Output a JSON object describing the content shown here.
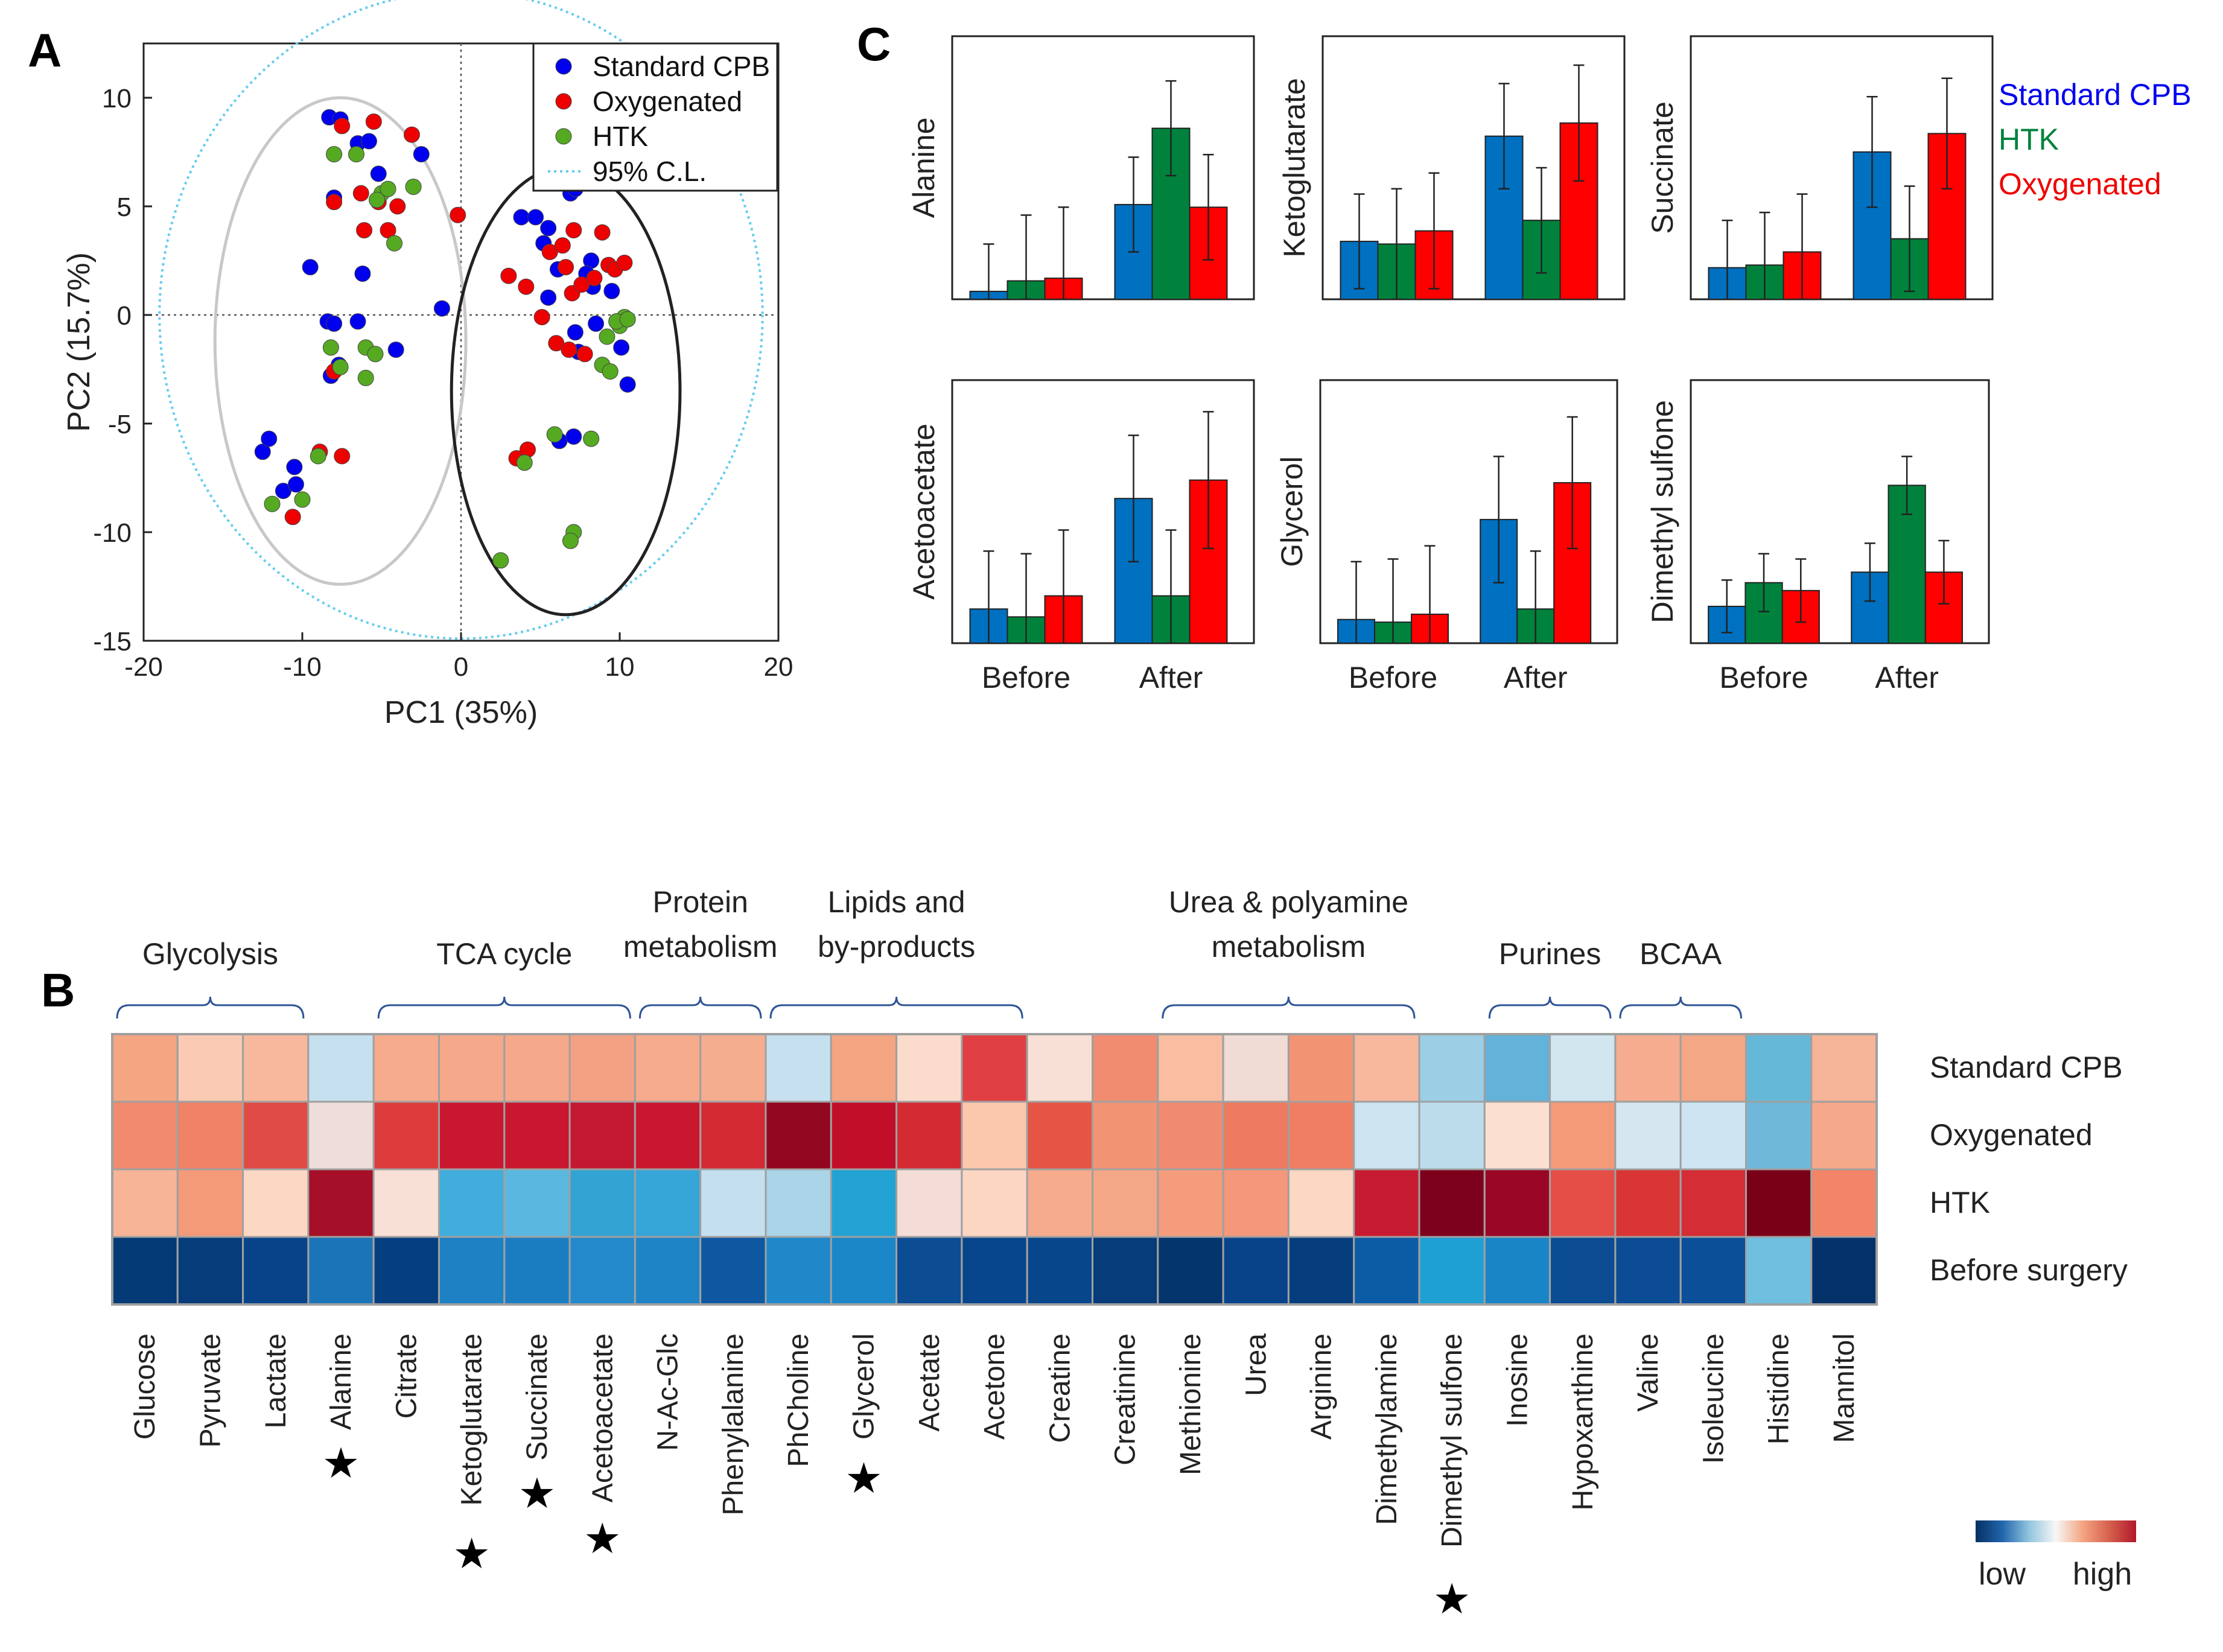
{
  "panel_letters": {
    "a": "A",
    "b": "B",
    "c": "C"
  },
  "colors": {
    "blue": "#0000ee",
    "red": "#ee0000",
    "green": "#55aa22",
    "bar_blue": "#0070c0",
    "bar_green": "#00823c",
    "bar_red": "#ff0000",
    "ci": "#66ccee",
    "ellipse_left": "#c8c8c8",
    "ellipse_right": "#222222"
  },
  "chart_data": [
    {
      "id": "A",
      "type": "scatter",
      "title": "",
      "xlabel": "PC1 (35%)",
      "ylabel": "PC2 (15.7%)",
      "xlim": [
        -20,
        20
      ],
      "ylim": [
        -15,
        12.5
      ],
      "xticks": [
        -20,
        -10,
        0,
        10,
        20
      ],
      "yticks": [
        -15,
        -10,
        -5,
        0,
        5,
        10
      ],
      "xtick_labels": [
        "-20",
        "-10",
        "0",
        "10",
        "20"
      ],
      "ytick_labels": [
        "-15",
        "-10",
        "-5",
        "0",
        "5",
        "10"
      ],
      "legend": [
        "Standard CPB",
        "Oxygenated",
        "HTK",
        "95% C.L."
      ],
      "legend_position": "top-right",
      "series": [
        {
          "name": "Standard CPB",
          "color": "#0000ee",
          "points": [
            [
              -8.3,
              9.1
            ],
            [
              -7.6,
              9.0
            ],
            [
              -6.5,
              7.9
            ],
            [
              -5.8,
              8.0
            ],
            [
              -5.2,
              6.5
            ],
            [
              -2.5,
              7.4
            ],
            [
              -8.0,
              5.4
            ],
            [
              -9.5,
              2.2
            ],
            [
              -6.2,
              1.9
            ],
            [
              -8.4,
              -0.3
            ],
            [
              -8.0,
              -0.4
            ],
            [
              -6.5,
              -0.3
            ],
            [
              -8.2,
              -2.8
            ],
            [
              -7.7,
              -2.3
            ],
            [
              -4.1,
              -1.6
            ],
            [
              -12.5,
              -6.3
            ],
            [
              -12.1,
              -5.7
            ],
            [
              -10.5,
              -7.0
            ],
            [
              -11.2,
              -8.1
            ],
            [
              -10.4,
              -7.8
            ],
            [
              -1.2,
              0.3
            ],
            [
              3.8,
              4.5
            ],
            [
              4.7,
              4.5
            ],
            [
              5.5,
              4.0
            ],
            [
              5.2,
              3.3
            ],
            [
              6.9,
              5.6
            ],
            [
              7.2,
              5.8
            ],
            [
              6.1,
              2.1
            ],
            [
              5.5,
              0.8
            ],
            [
              8.2,
              2.5
            ],
            [
              7.2,
              -0.8
            ],
            [
              8.5,
              -0.4
            ],
            [
              7.4,
              -1.7
            ],
            [
              7.9,
              1.9
            ],
            [
              8.3,
              1.3
            ],
            [
              9.5,
              1.1
            ],
            [
              10.1,
              -1.5
            ],
            [
              10.5,
              -3.2
            ],
            [
              6.2,
              -5.8
            ],
            [
              7.1,
              -5.6
            ]
          ]
        },
        {
          "name": "Oxygenated",
          "color": "#ee0000",
          "points": [
            [
              -7.5,
              8.7
            ],
            [
              -5.5,
              8.9
            ],
            [
              -3.1,
              8.3
            ],
            [
              -5.2,
              5.2
            ],
            [
              -6.1,
              3.9
            ],
            [
              -8.0,
              5.2
            ],
            [
              -6.3,
              5.6
            ],
            [
              -4.6,
              3.9
            ],
            [
              -0.2,
              4.6
            ],
            [
              -4.0,
              5.0
            ],
            [
              3.0,
              1.8
            ],
            [
              4.1,
              1.3
            ],
            [
              5.6,
              2.9
            ],
            [
              6.4,
              3.2
            ],
            [
              6.6,
              2.2
            ],
            [
              7.0,
              1.0
            ],
            [
              7.6,
              1.4
            ],
            [
              8.4,
              1.7
            ],
            [
              8.9,
              3.8
            ],
            [
              9.3,
              2.3
            ],
            [
              9.7,
              2.1
            ],
            [
              10.3,
              2.4
            ],
            [
              5.1,
              -0.1
            ],
            [
              6.0,
              -1.3
            ],
            [
              6.8,
              -1.6
            ],
            [
              7.8,
              -1.8
            ],
            [
              3.5,
              -6.6
            ],
            [
              4.2,
              -6.2
            ],
            [
              -8.9,
              -6.3
            ],
            [
              -7.5,
              -6.5
            ],
            [
              -10.6,
              -9.3
            ],
            [
              -8.0,
              -2.6
            ],
            [
              7.1,
              3.9
            ]
          ]
        },
        {
          "name": "HTK",
          "color": "#55aa22",
          "points": [
            [
              -8.0,
              7.4
            ],
            [
              -6.6,
              7.4
            ],
            [
              -5.0,
              5.6
            ],
            [
              -4.2,
              3.3
            ],
            [
              -4.6,
              5.8
            ],
            [
              -3.0,
              5.9
            ],
            [
              -5.3,
              5.3
            ],
            [
              -8.2,
              -1.5
            ],
            [
              -6.0,
              -1.5
            ],
            [
              -6.0,
              -2.9
            ],
            [
              -7.6,
              -2.4
            ],
            [
              -9.0,
              -6.5
            ],
            [
              -10.0,
              -8.5
            ],
            [
              -11.9,
              -8.7
            ],
            [
              -5.4,
              -1.8
            ],
            [
              8.9,
              -2.3
            ],
            [
              9.4,
              -2.6
            ],
            [
              9.8,
              -0.3
            ],
            [
              10.0,
              -0.5
            ],
            [
              10.3,
              -0.1
            ],
            [
              9.8,
              -0.3
            ],
            [
              10.5,
              -0.2
            ],
            [
              9.2,
              -1.0
            ],
            [
              4.0,
              -6.8
            ],
            [
              8.2,
              -5.7
            ],
            [
              7.1,
              -10.0
            ],
            [
              6.9,
              -10.4
            ],
            [
              2.5,
              -11.3
            ],
            [
              5.9,
              -5.5
            ]
          ]
        }
      ]
    },
    {
      "id": "B",
      "type": "heatmap",
      "rows": [
        "Standard CPB",
        "Oxygenated",
        "HTK",
        "Before surgery"
      ],
      "columns": [
        "Glucose",
        "Pyruvate",
        "Lactate",
        "Alanine",
        "Citrate",
        "Ketoglutarate",
        "Succinate",
        "Acetoacetate",
        "N-Ac-Glc",
        "Phenylalanine",
        "PhCholine",
        "Glycerol",
        "Acetate",
        "Acetone",
        "Creatine",
        "Creatinine",
        "Methionine",
        "Urea",
        "Arginine",
        "Dimethylamine",
        "Dimethyl sulfone",
        "Inosine",
        "Hypoxanthine",
        "Valine",
        "Isoleucine",
        "Histidine",
        "Mannitol"
      ],
      "starred": [
        "Alanine",
        "Ketoglutarate",
        "Succinate",
        "Acetoacetate",
        "Glycerol",
        "Dimethyl sulfone"
      ],
      "star_glyph": "★",
      "groups": [
        {
          "label_lines": [
            "Glycolysis"
          ],
          "from": 0,
          "to": 2
        },
        {
          "label_lines": [
            "TCA cycle"
          ],
          "from": 4,
          "to": 7
        },
        {
          "label_lines": [
            "Protein",
            "metabolism"
          ],
          "from": 8,
          "to": 9
        },
        {
          "label_lines": [
            "Lipids and",
            "by-products"
          ],
          "from": 10,
          "to": 13
        },
        {
          "label_lines": [
            "Urea & polyamine",
            "metabolism"
          ],
          "from": 16,
          "to": 19
        },
        {
          "label_lines": [
            "Purines"
          ],
          "from": 21,
          "to": 22
        },
        {
          "label_lines": [
            "BCAA"
          ],
          "from": 23,
          "to": 24
        }
      ],
      "colors": [
        [
          "#f4a582",
          "#fbcab4",
          "#f8b89d",
          "#c6e0ef",
          "#f6ab8c",
          "#f6a98a",
          "#f6a98a",
          "#f4a183",
          "#f6ab8c",
          "#f5ad8f",
          "#c6e0ef",
          "#f4a582",
          "#fbdccc",
          "#e04044",
          "#f9e0d6",
          "#f18c70",
          "#f9bda1",
          "#f0dcd4",
          "#f29474",
          "#f8b89d",
          "#9ccee6",
          "#62b2d9",
          "#d2e6f0",
          "#f6ac8e",
          "#f4a785",
          "#66b8d8",
          "#f6b498"
        ],
        [
          "#f18a6e",
          "#f08266",
          "#e04b45",
          "#eedddb",
          "#de3c3c",
          "#c8172e",
          "#c8172e",
          "#c41731",
          "#c8172e",
          "#d42a33",
          "#93061f",
          "#c10e29",
          "#d42a33",
          "#fbc7ad",
          "#e65444",
          "#f29474",
          "#f08a70",
          "#ee7a5f",
          "#ef7e62",
          "#cbe4ef",
          "#bcdcec",
          "#fbe0d2",
          "#f39a78",
          "#d6e6ef",
          "#cde5f2",
          "#6fb8d9",
          "#f6a98a"
        ],
        [
          "#f7b496",
          "#f39a79",
          "#fcd8c4",
          "#a50f27",
          "#f9e0d6",
          "#41addc",
          "#5ab8e0",
          "#33a3d4",
          "#36a5d8",
          "#c4e0ee",
          "#acd4e8",
          "#23a2d4",
          "#f3ddd6",
          "#fcd6c3",
          "#f6ab8c",
          "#f4a786",
          "#f59c7c",
          "#f4977a",
          "#fcd7c4",
          "#c71b31",
          "#7d001c",
          "#9a0626",
          "#e44e46",
          "#d93535",
          "#d42d35",
          "#7a0018",
          "#f28567"
        ],
        [
          "#043a75",
          "#053c79",
          "#08438a",
          "#1b74b8",
          "#053f80",
          "#1d81c4",
          "#1b7dc1",
          "#2389cb",
          "#1f84c6",
          "#0e58a2",
          "#1e88c9",
          "#1b86c8",
          "#0b4c93",
          "#07468d",
          "#08468c",
          "#053c79",
          "#04356d",
          "#08438a",
          "#063d7d",
          "#0c5ba5",
          "#1ea0d3",
          "#1985c6",
          "#0b4c93",
          "#0b4c94",
          "#0b4f98",
          "#6fbfe0",
          "#03326b"
        ]
      ],
      "colorbar": {
        "low_label": "low",
        "high_label": "high",
        "stops": [
          "#053061",
          "#2166ac",
          "#92c5de",
          "#f7f7f7",
          "#f4a582",
          "#d6604d",
          "#b2182b"
        ]
      }
    },
    {
      "id": "C",
      "type": "bar",
      "categories": [
        "Before",
        "After"
      ],
      "series_names": [
        "Standard CPB",
        "HTK",
        "Oxygenated"
      ],
      "legend": [
        {
          "label": "Standard CPB",
          "color": "#0000ee"
        },
        {
          "label": "HTK",
          "color": "#00823c"
        },
        {
          "label": "Oxygenated",
          "color": "#ee0000"
        }
      ],
      "ylim": [
        0,
        1
      ],
      "subplots": [
        {
          "ylabel": "Alanine",
          "means": [
            [
              0.03,
              0.07,
              0.08
            ],
            [
              0.36,
              0.65,
              0.35
            ]
          ],
          "errors": [
            [
              0.18,
              0.25,
              0.27
            ],
            [
              0.18,
              0.18,
              0.2
            ]
          ]
        },
        {
          "ylabel": "Ketoglutarate",
          "means": [
            [
              0.22,
              0.21,
              0.26
            ],
            [
              0.62,
              0.3,
              0.67
            ]
          ],
          "errors": [
            [
              0.18,
              0.21,
              0.22
            ],
            [
              0.2,
              0.2,
              0.22
            ]
          ]
        },
        {
          "ylabel": "Succinate",
          "means": [
            [
              0.12,
              0.13,
              0.18
            ],
            [
              0.56,
              0.23,
              0.63
            ]
          ],
          "errors": [
            [
              0.18,
              0.2,
              0.22
            ],
            [
              0.21,
              0.2,
              0.21
            ]
          ]
        },
        {
          "ylabel": "Acetoacetate",
          "means": [
            [
              0.13,
              0.1,
              0.18
            ],
            [
              0.55,
              0.18,
              0.62
            ]
          ],
          "errors": [
            [
              0.22,
              0.24,
              0.25
            ],
            [
              0.24,
              0.25,
              0.26
            ]
          ]
        },
        {
          "ylabel": "Glycerol",
          "means": [
            [
              0.09,
              0.08,
              0.11
            ],
            [
              0.47,
              0.13,
              0.61
            ]
          ],
          "errors": [
            [
              0.22,
              0.24,
              0.26
            ],
            [
              0.24,
              0.22,
              0.25
            ]
          ]
        },
        {
          "ylabel": "Dimethyl sulfone",
          "means": [
            [
              0.14,
              0.23,
              0.2
            ],
            [
              0.27,
              0.6,
              0.27
            ]
          ],
          "errors": [
            [
              0.1,
              0.11,
              0.12
            ],
            [
              0.11,
              0.11,
              0.12
            ]
          ]
        }
      ]
    }
  ]
}
